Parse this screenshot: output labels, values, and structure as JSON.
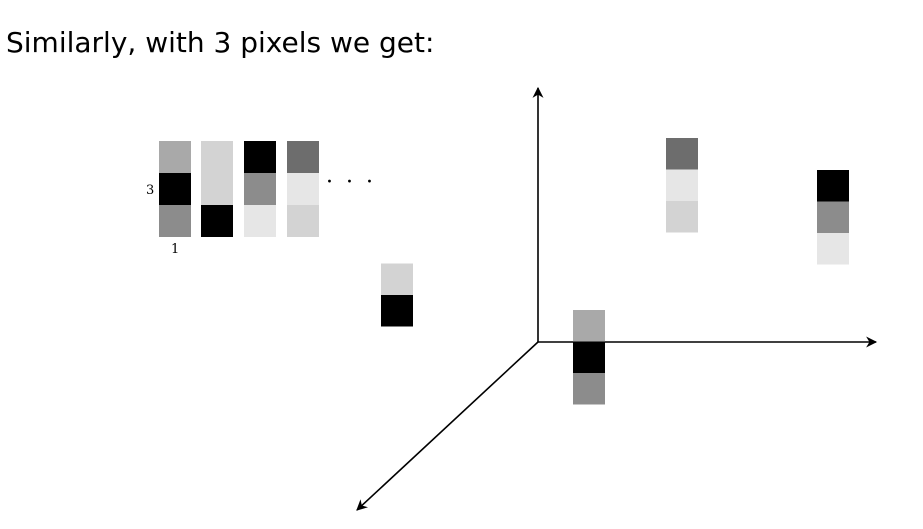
{
  "title": "Similarly, with 3 pixels we get:",
  "labels": {
    "top_row": "3",
    "bottom_row": "1",
    "ellipsis": "· · ·"
  },
  "palette": {
    "black": "#000000",
    "dark": "#6d6d6d",
    "mid": "#8c8c8c",
    "gray": "#a9a9a9",
    "light": "#d3d3d3",
    "lighter": "#e6e6e6"
  },
  "example_images": [
    [
      "#a9a9a9",
      "#000000",
      "#8c8c8c"
    ],
    [
      "#d3d3d3",
      "#d3d3d3",
      "#000000"
    ],
    [
      "#000000",
      "#8c8c8c",
      "#e6e6e6"
    ],
    [
      "#6d6d6d",
      "#e6e6e6",
      "#d3d3d3"
    ]
  ],
  "plotted_images": [
    [
      "#ffffff",
      "#d3d3d3",
      "#000000"
    ],
    [
      "#a9a9a9",
      "#000000",
      "#8c8c8c"
    ],
    [
      "#6d6d6d",
      "#e6e6e6",
      "#d3d3d3"
    ],
    [
      "#000000",
      "#8c8c8c",
      "#e6e6e6"
    ]
  ]
}
